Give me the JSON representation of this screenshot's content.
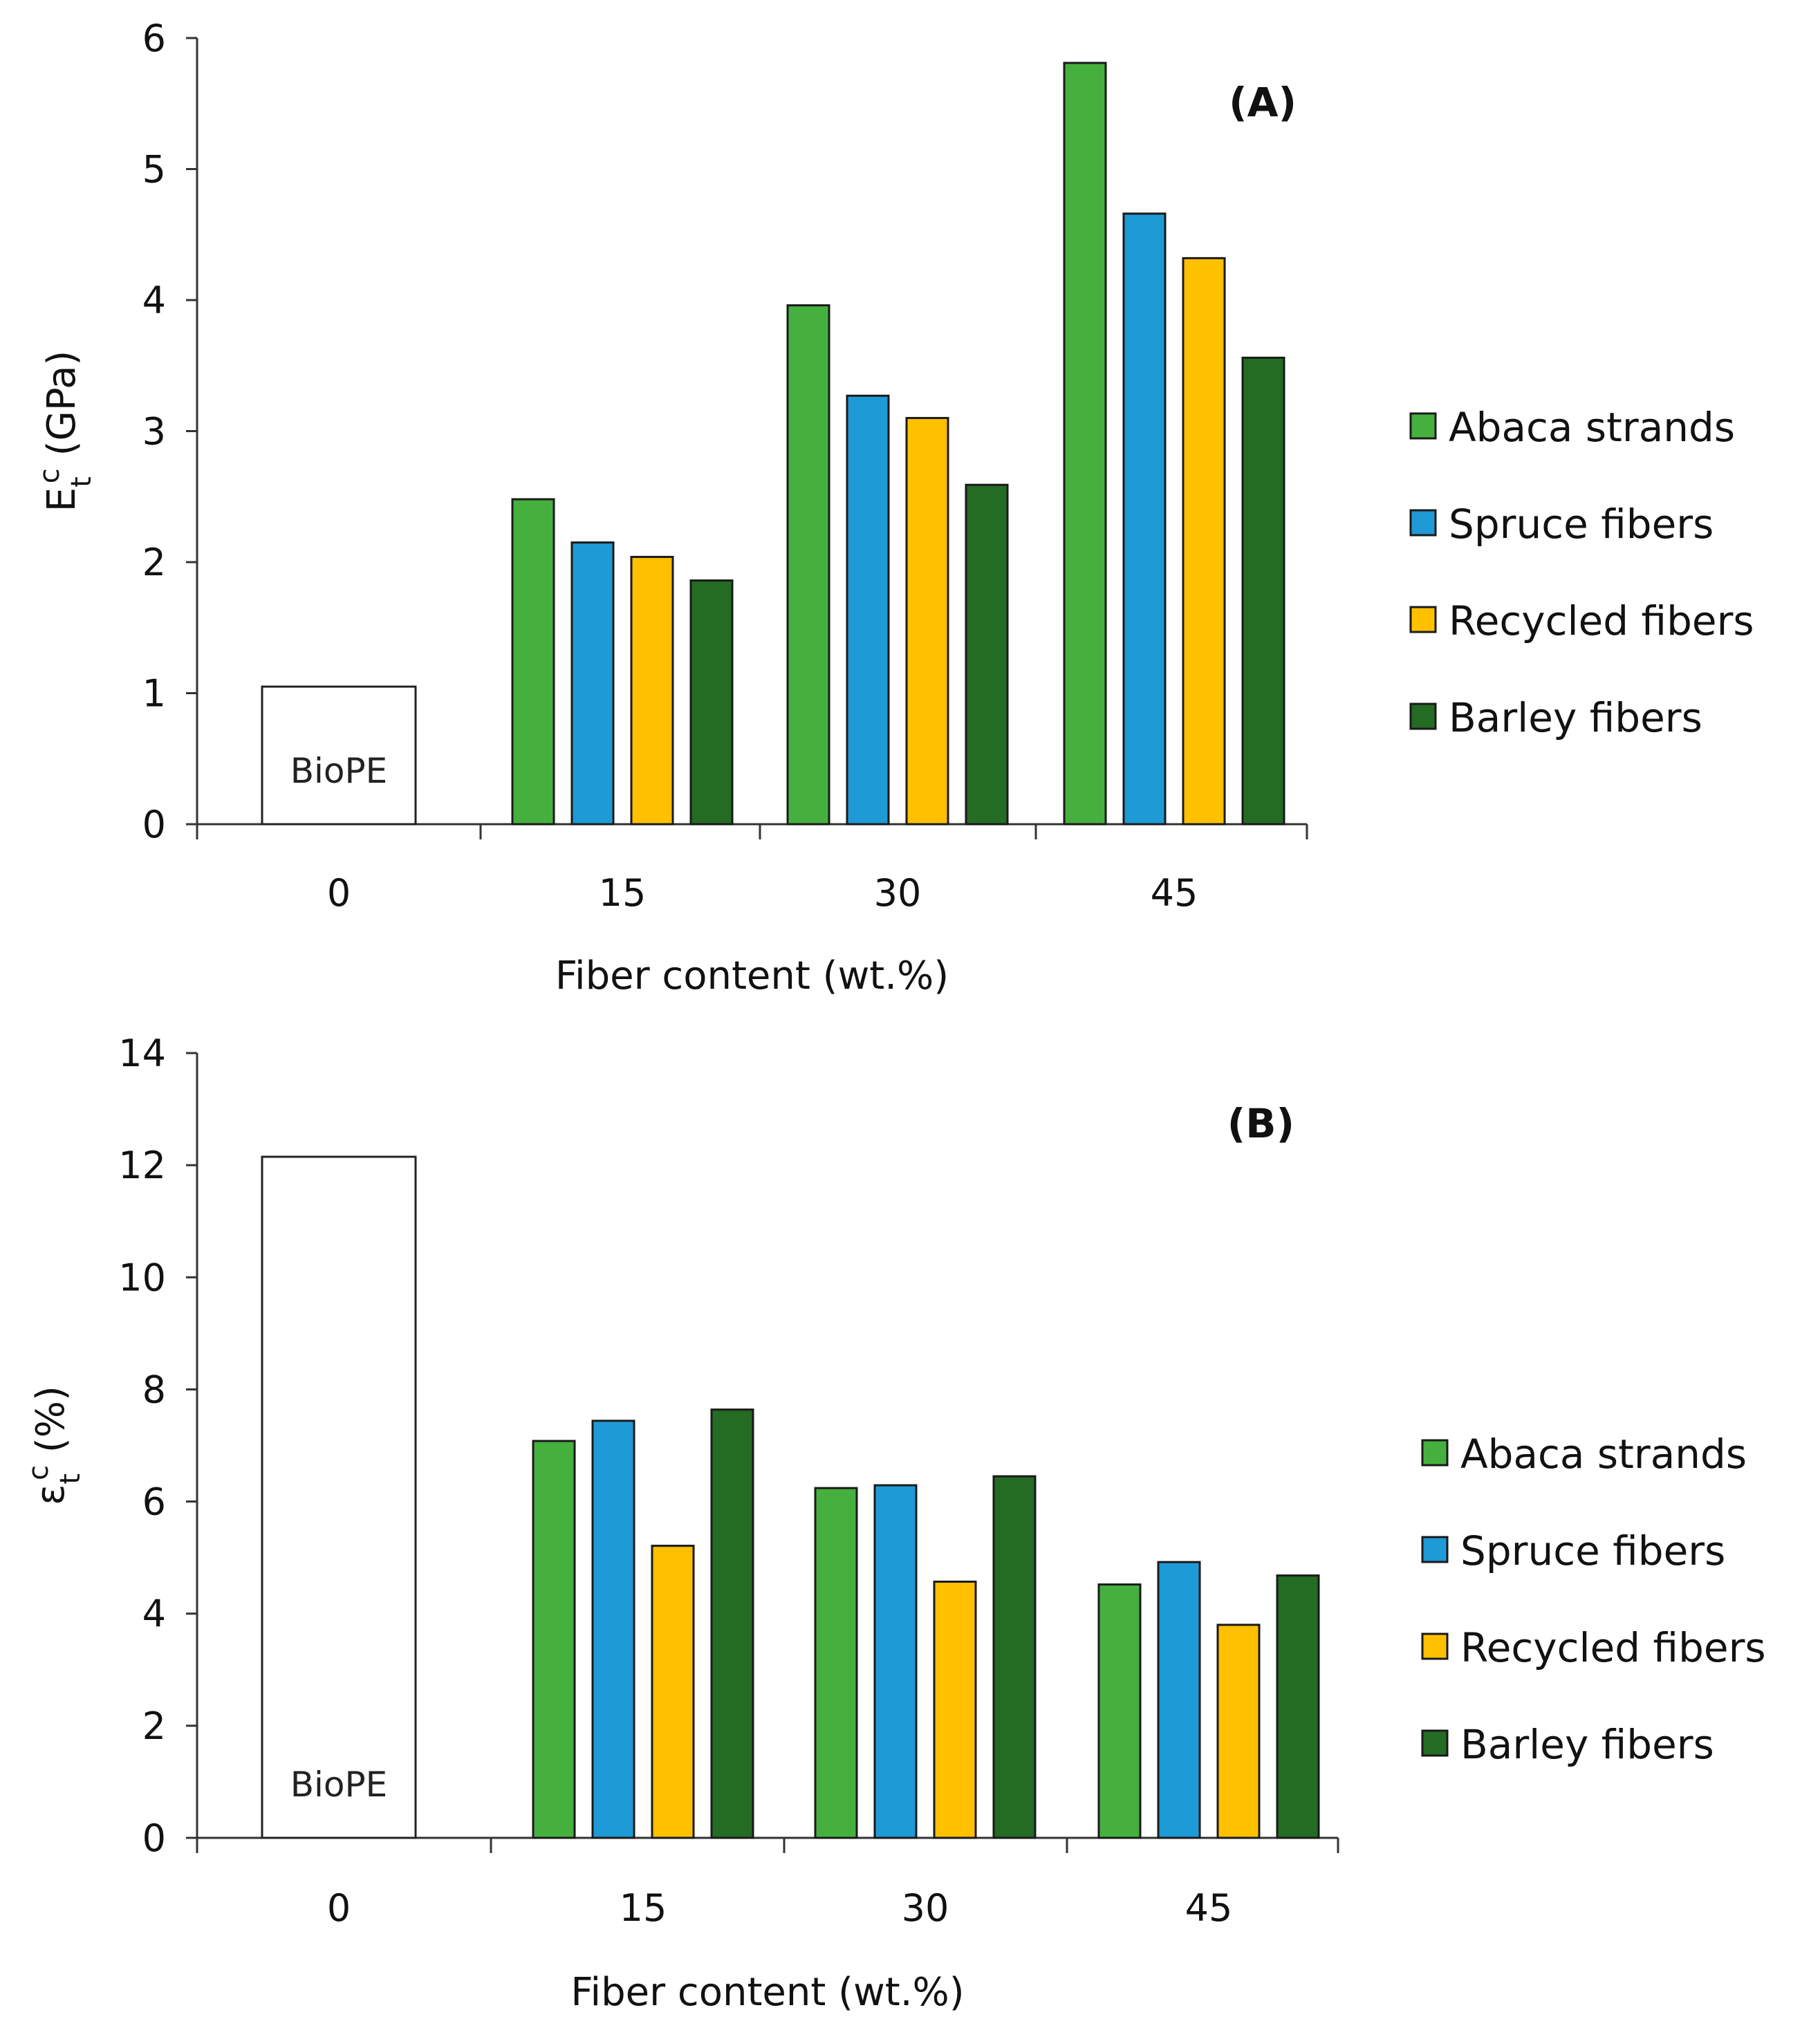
{
  "chart_data": [
    {
      "type": "bar",
      "panel_label": "(A)",
      "categories": [
        "0",
        "15",
        "30",
        "45"
      ],
      "xlabel": "Fiber content (wt.%)",
      "ylabel_main": "E",
      "ylabel_sub": "t",
      "ylabel_sup": "c",
      "ylabel_unit": " (GPa)",
      "ylim": [
        0,
        6
      ],
      "yticks": [
        0,
        1,
        2,
        3,
        4,
        5,
        6
      ],
      "baseline": {
        "name": "BioPE",
        "category": "0",
        "value": 1.05,
        "color": "#ffffff"
      },
      "series": [
        {
          "name": "Abaca strands",
          "color": "#46b03e",
          "values": [
            null,
            2.48,
            3.96,
            5.81
          ]
        },
        {
          "name": "Spruce fibers",
          "color": "#1e9ad6",
          "values": [
            null,
            2.15,
            3.27,
            4.66
          ]
        },
        {
          "name": "Recycled fibers",
          "color": "#ffc000",
          "values": [
            null,
            2.04,
            3.1,
            4.32
          ]
        },
        {
          "name": "Barley fibers",
          "color": "#246b24",
          "values": [
            null,
            1.86,
            2.59,
            3.56
          ]
        }
      ],
      "legend_position": "right",
      "grid": false
    },
    {
      "type": "bar",
      "panel_label": "(B)",
      "categories": [
        "0",
        "15",
        "30",
        "45"
      ],
      "xlabel": "Fiber content (wt.%)",
      "ylabel_main": "ε",
      "ylabel_sub": "t",
      "ylabel_sup": "c",
      "ylabel_unit": " (%)",
      "ylim": [
        0,
        14
      ],
      "yticks": [
        0,
        2,
        4,
        6,
        8,
        10,
        12,
        14
      ],
      "baseline": {
        "name": "BioPE",
        "category": "0",
        "value": 12.15,
        "color": "#ffffff"
      },
      "series": [
        {
          "name": "Abaca strands",
          "color": "#46b03e",
          "values": [
            null,
            7.08,
            6.24,
            4.52
          ]
        },
        {
          "name": "Spruce fibers",
          "color": "#1e9ad6",
          "values": [
            null,
            7.44,
            6.29,
            4.92
          ]
        },
        {
          "name": "Recycled fibers",
          "color": "#ffc000",
          "values": [
            null,
            5.21,
            4.57,
            3.8
          ]
        },
        {
          "name": "Barley fibers",
          "color": "#246b24",
          "values": [
            null,
            7.64,
            6.45,
            4.68
          ]
        }
      ],
      "legend_position": "right",
      "grid": false
    }
  ]
}
